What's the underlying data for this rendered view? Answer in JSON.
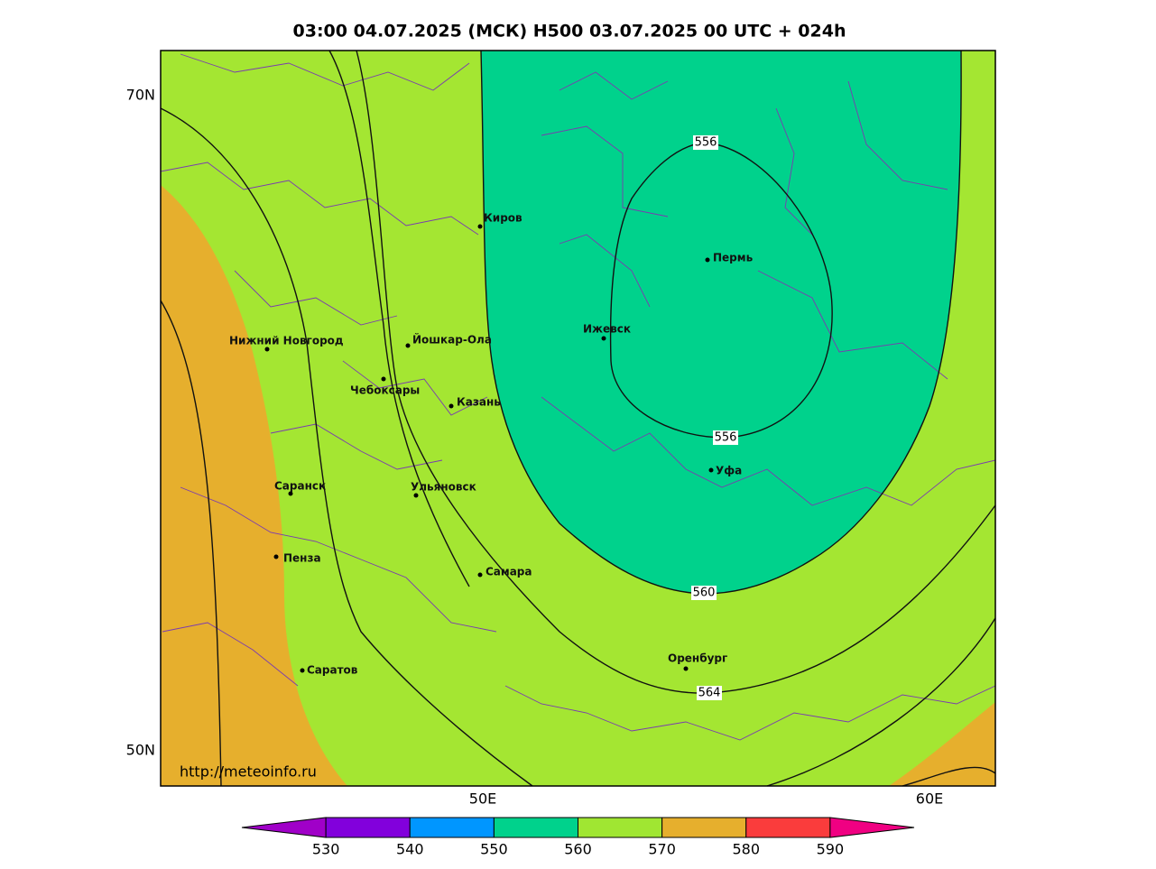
{
  "title": "03:00 04.07.2025 (МСК) H500  03.07.2025 00 UTC + 024h",
  "lat_labels": [
    "70N",
    "50N"
  ],
  "lon_labels": [
    "50E",
    "60E"
  ],
  "cities": [
    "Киров",
    "Пермь",
    "Нижний Новгород",
    "Йошкар-Ола",
    "Ижевск",
    "Чебоксары",
    "Казань",
    "Уфа",
    "Саранск",
    "Ульяновск",
    "Пенза",
    "Самара",
    "Оренбург",
    "Саратов"
  ],
  "contour_labels": [
    556,
    556,
    560,
    564
  ],
  "watermark": "http://meteoinfo.ru",
  "colorbar": {
    "ticks": [
      530,
      540,
      550,
      560,
      570,
      580,
      590
    ],
    "colors": [
      "#a000c8",
      "#8200dc",
      "#0096ff",
      "#00d28c",
      "#a0e632",
      "#e6af2d",
      "#fa3c3c",
      "#f00082"
    ]
  }
}
